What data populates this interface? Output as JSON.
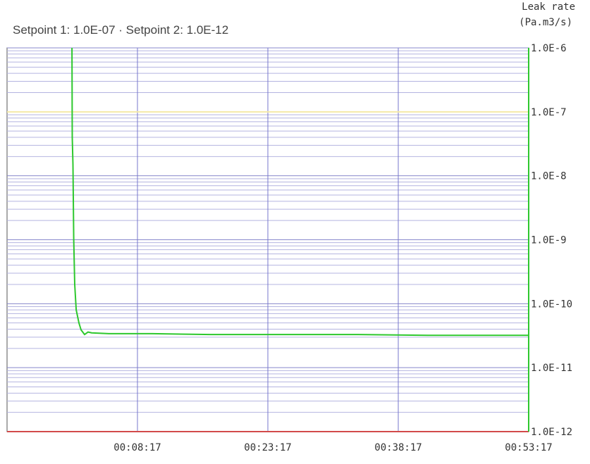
{
  "chart_data": {
    "type": "line",
    "subtitle": "Setpoint 1: 1.0E-07 · Setpoint 2: 1.0E-12",
    "ylabel": [
      "Leak rate",
      "(Pa.m3/s)"
    ],
    "ylog": true,
    "grid": true,
    "minor_grid": true,
    "xlim": [
      -403,
      3197
    ],
    "xticks": [
      {
        "value": 497,
        "label": "00:08:17"
      },
      {
        "value": 1397,
        "label": "00:23:17"
      },
      {
        "value": 2297,
        "label": "00:38:17"
      },
      {
        "value": 3197,
        "label": "00:53:17"
      }
    ],
    "ylim": [
      1e-12,
      1e-06
    ],
    "yticks": [
      {
        "value": 1e-06,
        "label": "1.0E-6"
      },
      {
        "value": 1e-07,
        "label": "1.0E-7"
      },
      {
        "value": 1e-08,
        "label": "1.0E-8"
      },
      {
        "value": 1e-09,
        "label": "1.0E-9"
      },
      {
        "value": 1e-10,
        "label": "1.0E-10"
      },
      {
        "value": 1e-11,
        "label": "1.0E-11"
      },
      {
        "value": 1e-12,
        "label": "1.0E-12"
      }
    ],
    "setpoints": [
      {
        "value": 1e-07,
        "color": "#f4e9a8"
      },
      {
        "value": 1e-12,
        "color": "#d24a4a"
      }
    ],
    "x": [
      45,
      47,
      52,
      57,
      64,
      74,
      93,
      108,
      132,
      156,
      181,
      300,
      600,
      1000,
      1500,
      2000,
      2500,
      3000,
      3197
    ],
    "series": [
      {
        "name": "Leak rate",
        "color": "#2ec82e",
        "values": [
          1e-06,
          4e-08,
          1.5e-08,
          1e-09,
          2e-10,
          8e-11,
          5e-11,
          3.9e-11,
          3.3e-11,
          3.6e-11,
          3.5e-11,
          3.4e-11,
          3.4e-11,
          3.3e-11,
          3.3e-11,
          3.3e-11,
          3.2e-11,
          3.2e-11,
          3.2e-11
        ]
      }
    ]
  }
}
